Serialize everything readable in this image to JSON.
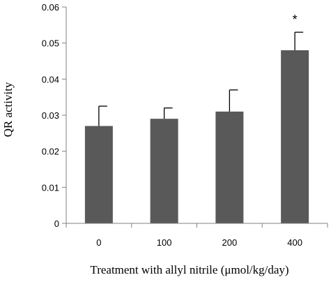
{
  "chart_data": {
    "type": "bar",
    "categories": [
      "0",
      "100",
      "200",
      "400"
    ],
    "values": [
      0.027,
      0.029,
      0.031,
      0.048
    ],
    "error_plus": [
      0.0055,
      0.003,
      0.006,
      0.005
    ],
    "annotations": [
      "",
      "",
      "",
      "*"
    ],
    "ylabel": "QR activity",
    "xlabel": "Treatment with allyl nitrile (μmol/kg/day)",
    "ylim": [
      0,
      0.06
    ],
    "yticks": [
      "0",
      "0.01",
      "0.02",
      "0.03",
      "0.04",
      "0.05",
      "0.06"
    ],
    "grid": false,
    "bar_color": "#595959",
    "axis_color": "#808080"
  }
}
